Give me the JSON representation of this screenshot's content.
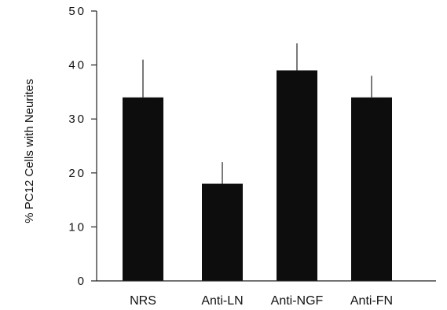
{
  "chart_data": {
    "type": "bar",
    "title": "",
    "xlabel": "",
    "ylabel": "% PC12 Cells with Neurites",
    "categories": [
      "NRS",
      "Anti-LN",
      "Anti-NGF",
      "Anti-FN"
    ],
    "series": [
      {
        "values": [
          34,
          18,
          39,
          34
        ],
        "errors": [
          7,
          4,
          5,
          4
        ]
      }
    ],
    "ylim": [
      0,
      50
    ],
    "yticks": [
      0,
      10,
      20,
      30,
      40,
      50
    ],
    "ytick_labels": [
      "0",
      "10",
      "20",
      "30",
      "40",
      "50"
    ],
    "grid": false,
    "legend": "none",
    "bar_color": "#111111"
  }
}
